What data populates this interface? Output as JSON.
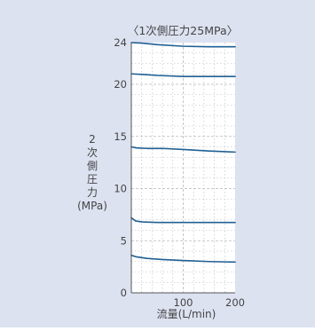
{
  "chart_data": {
    "type": "line",
    "title": "〈1次側圧力25MPa〉",
    "xlabel": "流量(L/min)",
    "ylabel_chars": [
      "2",
      "次",
      "側",
      "圧",
      "力"
    ],
    "ylabel_unit": "(MPa)",
    "xlim": [
      0,
      200
    ],
    "ylim": [
      0,
      24
    ],
    "x_ticks": [
      0,
      100,
      200
    ],
    "x_tick_labels": [
      "100",
      "200"
    ],
    "y_ticks": [
      0,
      5,
      10,
      15,
      20,
      24
    ],
    "y_tick_labels": [
      "0",
      "5",
      "10",
      "15",
      "20",
      "24"
    ],
    "grid": true,
    "colors": {
      "background": "#dde2f1",
      "plot_area": "#ffffff",
      "line": "#1f5f94",
      "grid": "#b8b8b8",
      "frame": "#555555"
    },
    "series": [
      {
        "x": [
          0,
          10,
          30,
          60,
          100,
          150,
          200
        ],
        "y": [
          3.6,
          3.45,
          3.3,
          3.2,
          3.1,
          3.0,
          2.95
        ]
      },
      {
        "x": [
          0,
          8,
          20,
          50,
          100,
          150,
          200
        ],
        "y": [
          7.2,
          6.9,
          6.8,
          6.75,
          6.75,
          6.75,
          6.75
        ]
      },
      {
        "x": [
          0,
          10,
          30,
          60,
          100,
          150,
          200
        ],
        "y": [
          14.0,
          13.9,
          13.85,
          13.85,
          13.75,
          13.6,
          13.5
        ]
      },
      {
        "x": [
          0,
          20,
          50,
          100,
          140,
          170,
          200
        ],
        "y": [
          21.0,
          20.95,
          20.85,
          20.75,
          20.75,
          20.75,
          20.75
        ]
      },
      {
        "x": [
          0,
          20,
          50,
          100,
          150,
          200
        ],
        "y": [
          24.0,
          23.95,
          23.8,
          23.65,
          23.6,
          23.6
        ]
      }
    ]
  }
}
